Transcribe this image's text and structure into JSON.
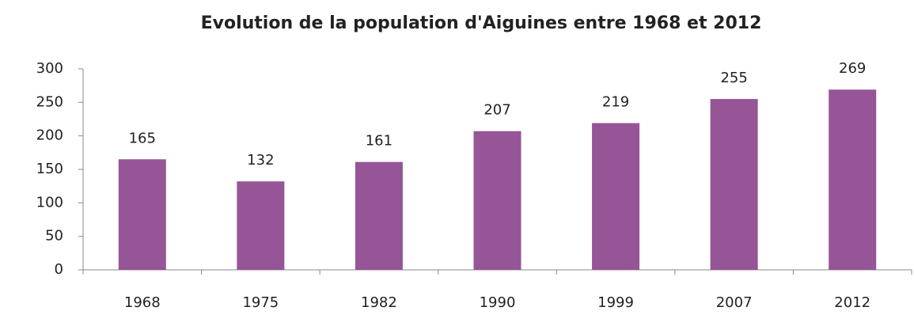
{
  "chart_data": {
    "type": "bar",
    "title": "Evolution de la population d'Aiguines entre 1968 et 2012",
    "categories": [
      "1968",
      "1975",
      "1982",
      "1990",
      "1999",
      "2007",
      "2012"
    ],
    "values": [
      165,
      132,
      161,
      207,
      219,
      255,
      269
    ],
    "color": "#955596",
    "ylim": [
      0,
      300
    ],
    "yticks": [
      0,
      50,
      100,
      150,
      200,
      250,
      300
    ],
    "grid": false
  }
}
